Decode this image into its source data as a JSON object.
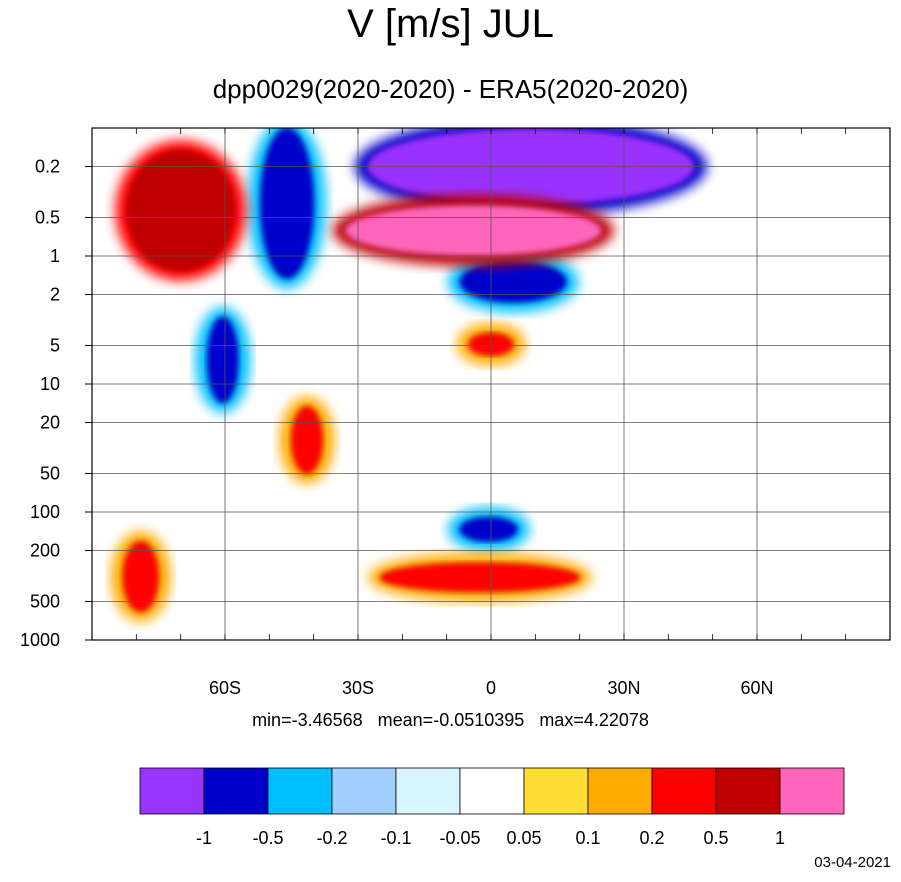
{
  "chart_data": {
    "type": "heatmap",
    "title": "V [m/s] JUL",
    "subtitle": "dpp0029(2020-2020) - ERA5(2020-2020)",
    "x_ticks": [
      "60S",
      "30S",
      "0",
      "30N",
      "60N"
    ],
    "x_tick_values": [
      -60,
      -30,
      0,
      30,
      60
    ],
    "x_range": [
      -90,
      90
    ],
    "y_ticks": [
      "0.2",
      "0.5",
      "1",
      "2",
      "5",
      "10",
      "20",
      "50",
      "100",
      "200",
      "500",
      "1000"
    ],
    "y_tick_values": [
      0.2,
      0.5,
      1,
      2,
      5,
      10,
      20,
      50,
      100,
      200,
      500,
      1000
    ],
    "y_range": [
      0.1,
      1000
    ],
    "y_scale": "log",
    "y_reversed": true,
    "grid": true,
    "stats": {
      "min": "-3.46568",
      "mean": "-0.0510395",
      "max": "4.22078"
    },
    "colorbar": {
      "position": "bottom",
      "levels": [
        "-1",
        "-0.5",
        "-0.2",
        "-0.1",
        "-0.05",
        "0.05",
        "0.1",
        "0.2",
        "0.5",
        "1"
      ],
      "colors": [
        "#9933ff",
        "#0000cc",
        "#00bfff",
        "#a0cfff",
        "#d8f4ff",
        "#ffffff",
        "#ffdd33",
        "#ffaa00",
        "#ff0000",
        "#c00000",
        "#ff66bb"
      ]
    },
    "features": [
      {
        "value": -1.3,
        "lat": [
          -28,
          46
        ],
        "p": [
          0.1,
          0.4
        ]
      },
      {
        "value": -0.8,
        "lat": [
          -52,
          -40
        ],
        "p": [
          0.1,
          1.5
        ]
      },
      {
        "value": -0.7,
        "lat": [
          -7,
          17
        ],
        "p": [
          1.1,
          2.3
        ]
      },
      {
        "value": -0.6,
        "lat": [
          -64,
          -57
        ],
        "p": [
          3,
          14
        ]
      },
      {
        "value": 0.7,
        "lat": [
          -82,
          -58
        ],
        "p": [
          0.15,
          1.3
        ]
      },
      {
        "value": 1.5,
        "lat": [
          -33,
          25
        ],
        "p": [
          0.4,
          1.0
        ]
      },
      {
        "value": 0.3,
        "lat": [
          -5,
          5
        ],
        "p": [
          4,
          6
        ]
      },
      {
        "value": 0.3,
        "lat": [
          -45,
          -38
        ],
        "p": [
          15,
          50
        ]
      },
      {
        "value": -0.6,
        "lat": [
          -7,
          6
        ],
        "p": [
          110,
          170
        ]
      },
      {
        "value": 0.3,
        "lat": [
          -25,
          20
        ],
        "p": [
          250,
          420
        ]
      },
      {
        "value": 0.3,
        "lat": [
          -83,
          -75
        ],
        "p": [
          170,
          600
        ]
      }
    ]
  },
  "labels": {
    "date": "03-04-2021"
  }
}
